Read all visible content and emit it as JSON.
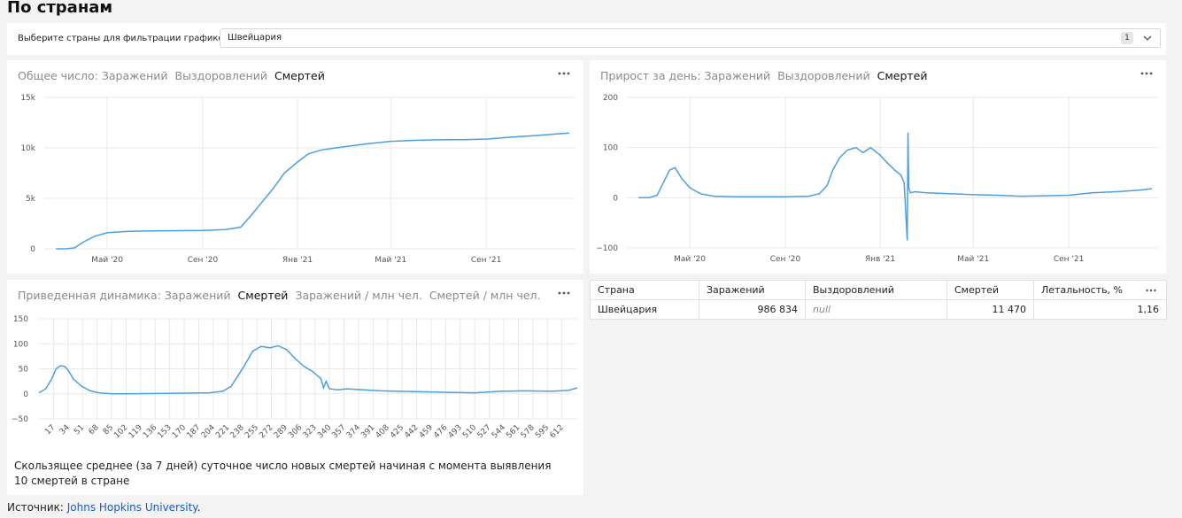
{
  "page": {
    "title": "По странам",
    "filter": {
      "label": "Выберите страны для фильтрации графиков:",
      "value": "Швейцария",
      "count": "1"
    },
    "source_prefix": "Источник: ",
    "source_link": "Johns Hopkins University",
    "source_suffix": "."
  },
  "cards": {
    "total": {
      "tabs": [
        "Общее число: Заражений",
        "Выздоровлений",
        "Смертей"
      ],
      "active_tab": 2
    },
    "daily": {
      "tabs": [
        "Прирост за день: Заражений",
        "Выздоровлений",
        "Смертей"
      ],
      "active_tab": 2
    },
    "dynamics": {
      "tabs": [
        "Приведенная динамика: Заражений",
        "Смертей",
        "Заражений / млн чел.",
        "Смертей / млн чел."
      ],
      "active_tab": 1,
      "footnote": "Скользящее среднее (за 7 дней) суточное число новых смертей начиная с момента выявления 10 смертей в стране"
    }
  },
  "table": {
    "headers": [
      "Страна",
      "Заражений",
      "Выздоровлений",
      "Смертей",
      "Летальность, %"
    ],
    "rows": [
      [
        "Швейцария",
        "986 834",
        "null",
        "11 470",
        "1,16"
      ]
    ]
  },
  "colors": {
    "series": "#4d9fe0",
    "link": "#1a5bbf"
  },
  "chart_data": [
    {
      "type": "line",
      "name": "cumulative-deaths",
      "x_ticks": [
        "Май '20",
        "Сен '20",
        "Янв '21",
        "Май '21",
        "Сен '21"
      ],
      "y_ticks": [
        "0",
        "5k",
        "10k",
        "15k"
      ],
      "ylim": [
        0,
        15000
      ],
      "x": [
        "2020-02-25",
        "2020-03-10",
        "2020-03-20",
        "2020-04-01",
        "2020-04-15",
        "2020-05-01",
        "2020-06-01",
        "2020-07-01",
        "2020-08-01",
        "2020-09-01",
        "2020-10-01",
        "2020-10-20",
        "2020-11-01",
        "2020-11-15",
        "2020-12-01",
        "2020-12-15",
        "2021-01-01",
        "2021-01-15",
        "2021-02-01",
        "2021-03-01",
        "2021-04-01",
        "2021-05-01",
        "2021-06-01",
        "2021-07-01",
        "2021-08-01",
        "2021-09-01",
        "2021-10-01",
        "2021-11-01",
        "2021-12-01",
        "2021-12-17"
      ],
      "values": [
        0,
        10,
        100,
        700,
        1250,
        1600,
        1750,
        1780,
        1800,
        1820,
        1900,
        2150,
        3200,
        4500,
        6000,
        7500,
        8600,
        9400,
        9800,
        10100,
        10400,
        10650,
        10750,
        10800,
        10820,
        10870,
        11050,
        11200,
        11380,
        11470
      ]
    },
    {
      "type": "line",
      "name": "daily-deaths",
      "x_ticks": [
        "Май '20",
        "Сен '20",
        "Янв '21",
        "Май '21",
        "Сен '21"
      ],
      "y_ticks": [
        "−100",
        "0",
        "100",
        "200"
      ],
      "ylim": [
        -100,
        200
      ],
      "x": [
        "2020-02-25",
        "2020-03-10",
        "2020-03-20",
        "2020-03-28",
        "2020-04-05",
        "2020-04-12",
        "2020-04-20",
        "2020-05-01",
        "2020-05-15",
        "2020-06-01",
        "2020-07-01",
        "2020-08-01",
        "2020-09-01",
        "2020-10-01",
        "2020-10-15",
        "2020-10-25",
        "2020-11-01",
        "2020-11-10",
        "2020-11-20",
        "2020-12-01",
        "2020-12-10",
        "2020-12-20",
        "2021-01-01",
        "2021-01-10",
        "2021-01-20",
        "2021-01-28",
        "2021-02-01",
        "2021-02-05",
        "2021-02-06",
        "2021-02-07",
        "2021-02-08",
        "2021-02-09",
        "2021-02-15",
        "2021-03-01",
        "2021-04-01",
        "2021-05-01",
        "2021-06-01",
        "2021-07-01",
        "2021-08-01",
        "2021-09-01",
        "2021-10-01",
        "2021-11-01",
        "2021-12-01",
        "2021-12-17"
      ],
      "values": [
        0,
        0,
        5,
        30,
        55,
        60,
        40,
        20,
        8,
        3,
        2,
        2,
        2,
        3,
        8,
        25,
        55,
        80,
        95,
        100,
        90,
        100,
        85,
        70,
        55,
        45,
        30,
        -85,
        130,
        20,
        15,
        10,
        12,
        10,
        8,
        6,
        5,
        3,
        4,
        5,
        10,
        12,
        15,
        18
      ]
    },
    {
      "type": "line",
      "name": "deaths-rolling-7d",
      "x_ticks": [
        "17",
        "34",
        "51",
        "68",
        "85",
        "102",
        "119",
        "136",
        "153",
        "170",
        "187",
        "204",
        "221",
        "238",
        "255",
        "272",
        "289",
        "306",
        "323",
        "340",
        "357",
        "374",
        "391",
        "408",
        "425",
        "442",
        "459",
        "476",
        "493",
        "510",
        "527",
        "544",
        "561",
        "578",
        "595",
        "612"
      ],
      "y_ticks": [
        "−50",
        "0",
        "50",
        "100",
        "150"
      ],
      "ylim": [
        -50,
        150
      ],
      "xlim": [
        0,
        630
      ],
      "x": [
        0,
        8,
        15,
        20,
        25,
        30,
        35,
        40,
        50,
        60,
        70,
        85,
        100,
        150,
        200,
        215,
        225,
        240,
        250,
        260,
        270,
        280,
        290,
        300,
        310,
        320,
        330,
        333,
        336,
        340,
        350,
        360,
        380,
        400,
        420,
        450,
        480,
        510,
        540,
        570,
        600,
        620,
        630
      ],
      "values": [
        2,
        10,
        30,
        50,
        56,
        55,
        45,
        30,
        15,
        6,
        2,
        0,
        0,
        1,
        2,
        5,
        15,
        55,
        85,
        95,
        92,
        96,
        88,
        70,
        55,
        45,
        30,
        12,
        25,
        10,
        8,
        10,
        8,
        6,
        5,
        4,
        3,
        2,
        5,
        6,
        5,
        7,
        12
      ]
    }
  ]
}
